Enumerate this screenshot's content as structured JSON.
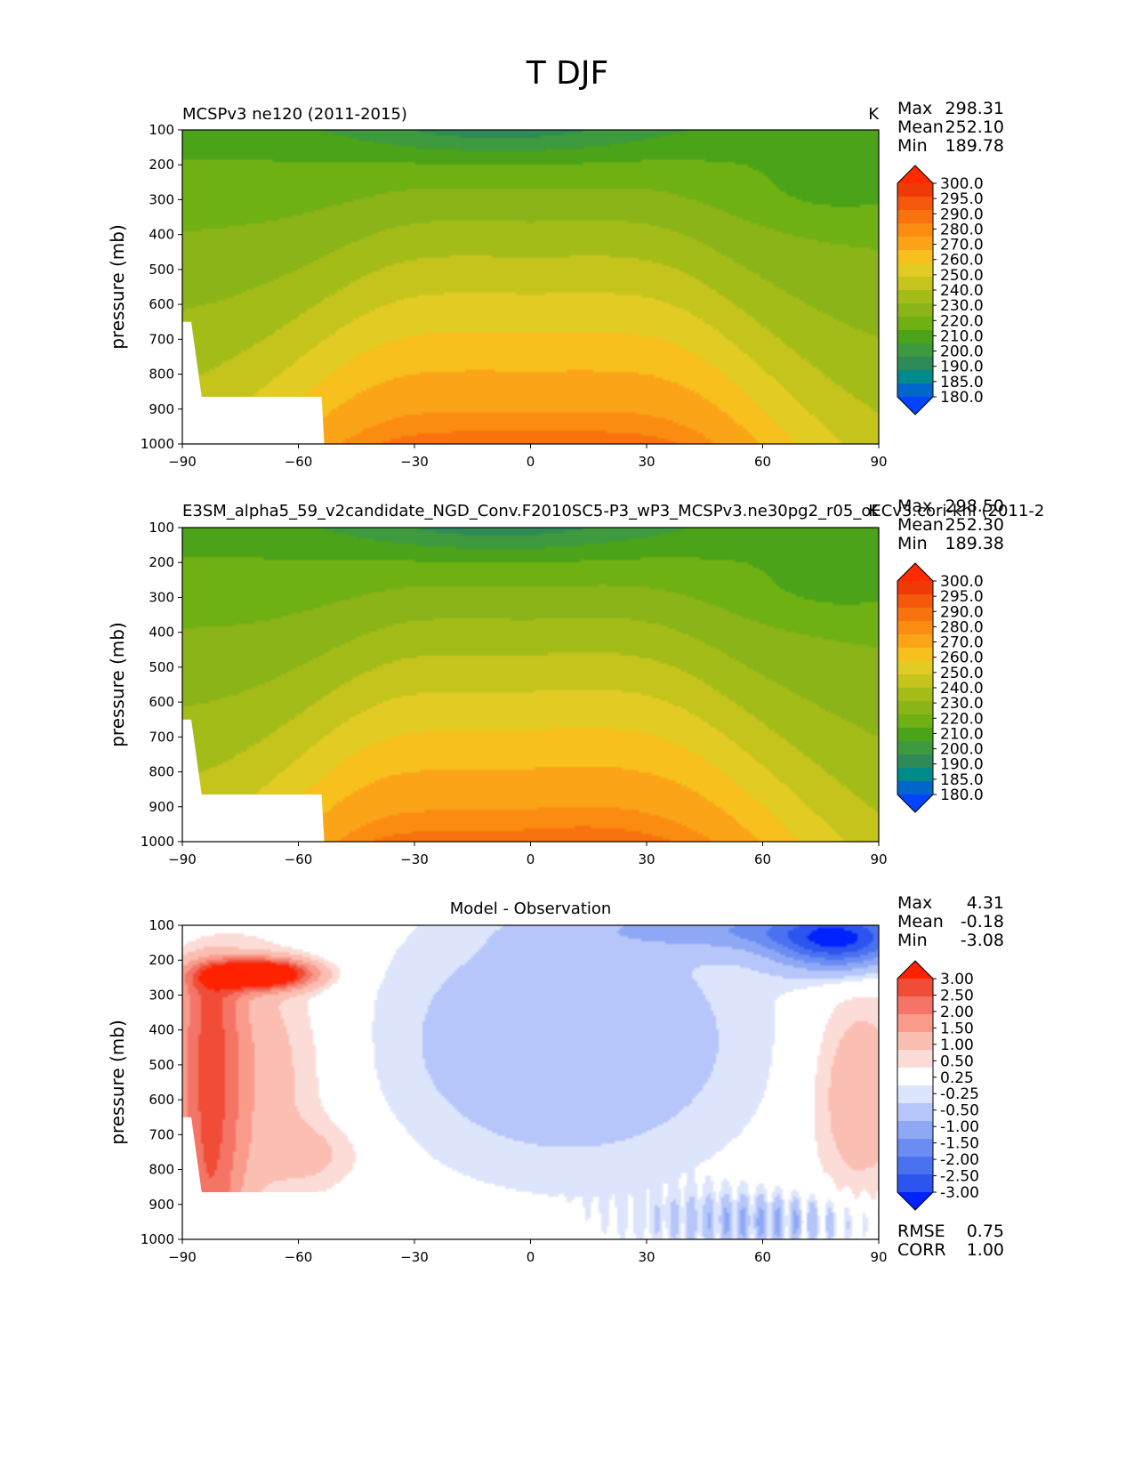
{
  "figure_title": "T DJF",
  "colors": {
    "temp": [
      "#0044ff",
      "#0066cc",
      "#008b8b",
      "#2e8b57",
      "#3e9a3e",
      "#4aa318",
      "#6fb012",
      "#8ab418",
      "#a4bc18",
      "#c4c41c",
      "#e2cc24",
      "#f7c01c",
      "#fba418",
      "#fb8c12",
      "#f8720e",
      "#f5580a",
      "#f03a06",
      "#ff2a00"
    ],
    "diff": [
      "#0022ff",
      "#2b55ee",
      "#4a72f0",
      "#6b8df3",
      "#8ea8f5",
      "#b6c6fa",
      "#dde5fc",
      "#ffffff",
      "#fbdcd6",
      "#fbbeb3",
      "#f99a8a",
      "#f47466",
      "#f04c38",
      "#ff2200"
    ]
  },
  "chart_data": [
    {
      "type": "contour",
      "panel_id": "test",
      "title_left": "MCSPv3 ne120 (2011-2015)",
      "units": "K",
      "xlabel": "",
      "ylabel": "pressure (mb)",
      "x_ticks": [
        "−90",
        "−60",
        "−30",
        "0",
        "30",
        "60",
        "90"
      ],
      "y_ticks": [
        "100",
        "200",
        "300",
        "400",
        "500",
        "600",
        "700",
        "800",
        "900",
        "1000"
      ],
      "xlim": [
        -90,
        90
      ],
      "ylim": [
        1000,
        100
      ],
      "stats": {
        "max_label": "Max",
        "max": "298.31",
        "mean_label": "Mean",
        "mean": "252.10",
        "min_label": "Min",
        "min": "189.78"
      },
      "colorbar_labels": [
        "300.0",
        "295.0",
        "290.0",
        "280.0",
        "270.0",
        "260.0",
        "250.0",
        "240.0",
        "230.0",
        "220.0",
        "210.0",
        "200.0",
        "190.0",
        "185.0",
        "180.0"
      ],
      "levels": [
        180,
        185,
        190,
        200,
        210,
        220,
        230,
        240,
        250,
        260,
        270,
        280,
        290,
        295,
        300
      ]
    },
    {
      "type": "contour",
      "panel_id": "ref",
      "title_left": "E3SM_alpha5_59_v2candidate_NGD_Conv.F2010SC5-P3_wP3_MCSPv3.ne30pg2_r05_oECv3.cori-knl (2011-2",
      "units": "K",
      "xlabel": "",
      "ylabel": "pressure (mb)",
      "x_ticks": [
        "−90",
        "−60",
        "−30",
        "0",
        "30",
        "60",
        "90"
      ],
      "y_ticks": [
        "100",
        "200",
        "300",
        "400",
        "500",
        "600",
        "700",
        "800",
        "900",
        "1000"
      ],
      "xlim": [
        -90,
        90
      ],
      "ylim": [
        1000,
        100
      ],
      "stats": {
        "max_label": "Max",
        "max": "298.50",
        "mean_label": "Mean",
        "mean": "252.30",
        "min_label": "Min",
        "min": "189.38"
      },
      "colorbar_labels": [
        "300.0",
        "295.0",
        "290.0",
        "280.0",
        "270.0",
        "260.0",
        "250.0",
        "240.0",
        "230.0",
        "220.0",
        "210.0",
        "200.0",
        "190.0",
        "185.0",
        "180.0"
      ],
      "levels": [
        180,
        185,
        190,
        200,
        210,
        220,
        230,
        240,
        250,
        260,
        270,
        280,
        290,
        295,
        300
      ]
    },
    {
      "type": "contour",
      "panel_id": "diff",
      "title_center": "Model - Observation",
      "xlabel": "",
      "ylabel": "pressure (mb)",
      "x_ticks": [
        "−90",
        "−60",
        "−30",
        "0",
        "30",
        "60",
        "90"
      ],
      "y_ticks": [
        "100",
        "200",
        "300",
        "400",
        "500",
        "600",
        "700",
        "800",
        "900",
        "1000"
      ],
      "xlim": [
        -90,
        90
      ],
      "ylim": [
        1000,
        100
      ],
      "stats": {
        "max_label": "Max",
        "max": "4.31",
        "mean_label": "Mean",
        "mean": "-0.18",
        "min_label": "Min",
        "min": "-3.08"
      },
      "colorbar_labels": [
        "3.00",
        "2.50",
        "2.00",
        "1.50",
        "1.00",
        "0.50",
        "0.25",
        "-0.25",
        "-0.50",
        "-1.00",
        "-1.50",
        "-2.00",
        "-2.50",
        "-3.00"
      ],
      "levels": [
        -3.0,
        -2.5,
        -2.0,
        -1.5,
        -1.0,
        -0.5,
        -0.25,
        0.25,
        0.5,
        1.0,
        1.5,
        2.0,
        2.5,
        3.0
      ],
      "rmse_label": "RMSE",
      "rmse": "0.75",
      "corr_label": "CORR",
      "corr": "1.00"
    }
  ]
}
